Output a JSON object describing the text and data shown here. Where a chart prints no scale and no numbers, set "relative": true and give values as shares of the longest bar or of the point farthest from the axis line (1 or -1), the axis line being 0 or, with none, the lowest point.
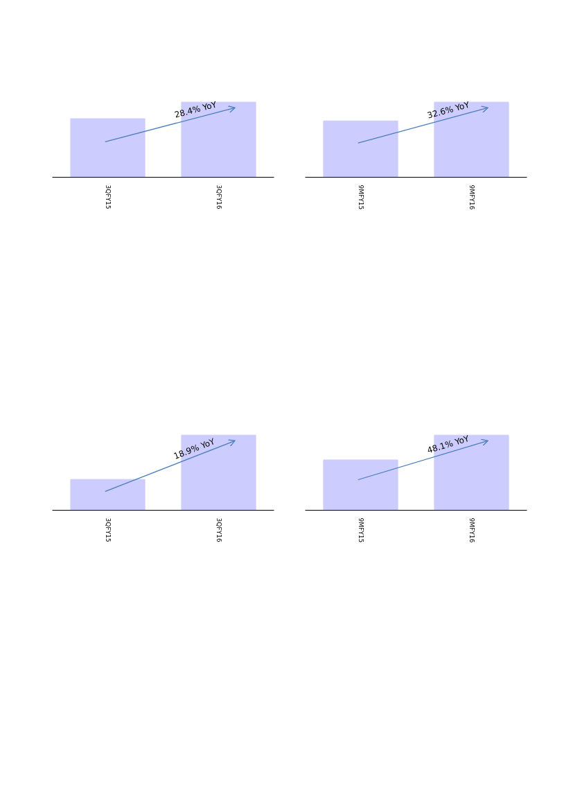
{
  "chart_data": [
    {
      "type": "bar",
      "relative": true,
      "categories": [
        "3QFY15",
        "3QFY16"
      ],
      "values": [
        0.78,
        1
      ],
      "color": "#ccccff",
      "annotations": [
        "28.4% YoY"
      ],
      "tick_labels": "x"
    },
    {
      "type": "bar",
      "relative": true,
      "categories": [
        "9MFY15",
        "9MFY16"
      ],
      "values": [
        0.75,
        1
      ],
      "color": "#ccccff",
      "annotations": [
        "32.6% YoY"
      ],
      "tick_labels": "x"
    },
    {
      "type": "bar",
      "relative": true,
      "categories": [
        "3QFY15",
        "3QFY16"
      ],
      "values": [
        0.41,
        1
      ],
      "color": "#ccccff",
      "annotations": [
        "18.9% YoY"
      ],
      "tick_labels": "x"
    },
    {
      "type": "bar",
      "relative": true,
      "categories": [
        "9MFY15",
        "9MFY16"
      ],
      "values": [
        0.67,
        1
      ],
      "color": "#ccccff",
      "annotations": [
        "48.1% YoY"
      ],
      "tick_labels": "x"
    }
  ]
}
